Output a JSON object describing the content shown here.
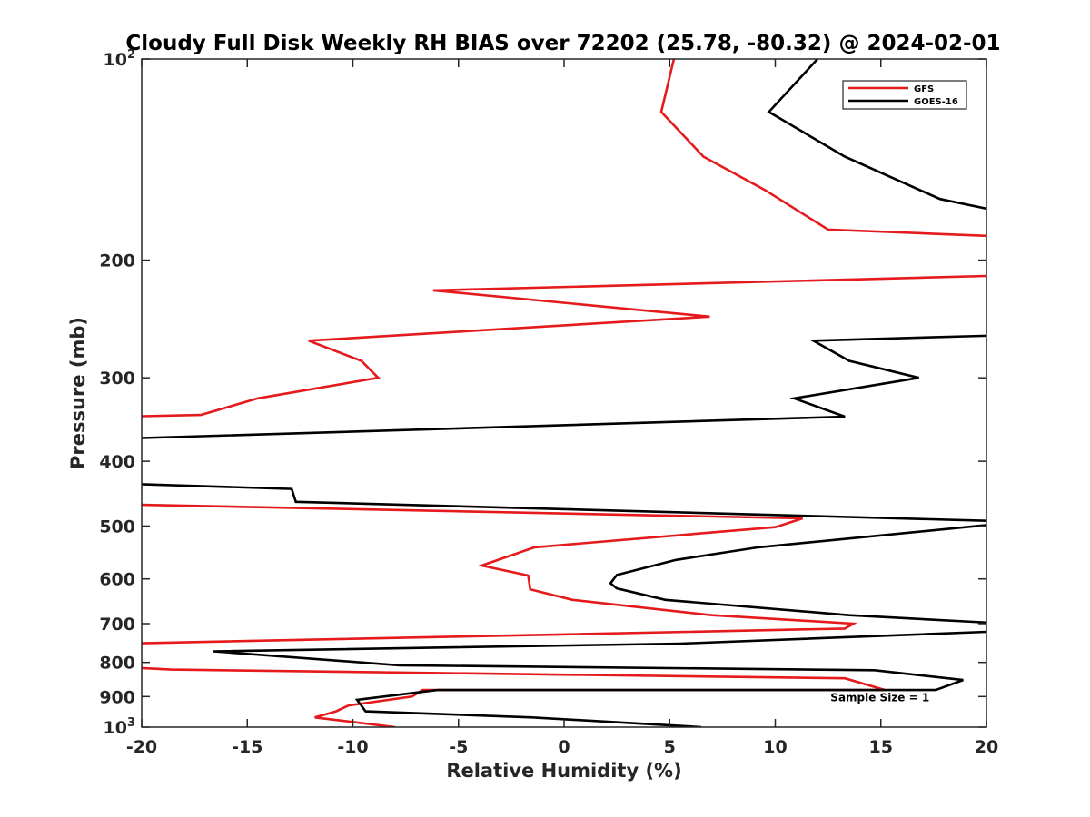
{
  "chart_data": {
    "type": "line",
    "title": "Cloudy Full Disk Weekly RH BIAS over 72202 (25.78, -80.32) @ 2024-02-01",
    "xlabel": "Relative Humidity (%)",
    "ylabel": "Pressure (mb)",
    "xlim": [
      -20,
      20
    ],
    "ylim": [
      100,
      1000
    ],
    "y_scale": "log",
    "y_reversed": true,
    "grid": false,
    "legend_position": "top-right",
    "x_ticks": [
      {
        "value": -20,
        "label": "-20"
      },
      {
        "value": -15,
        "label": "-15"
      },
      {
        "value": -10,
        "label": "-10"
      },
      {
        "value": -5,
        "label": "-5"
      },
      {
        "value": 0,
        "label": "0"
      },
      {
        "value": 5,
        "label": "5"
      },
      {
        "value": 10,
        "label": "10"
      },
      {
        "value": 15,
        "label": "15"
      },
      {
        "value": 20,
        "label": "20"
      }
    ],
    "y_ticks": [
      {
        "value": 100,
        "base": "10",
        "exp": "2"
      },
      {
        "value": 200,
        "base": "200",
        "exp": ""
      },
      {
        "value": 300,
        "base": "300",
        "exp": ""
      },
      {
        "value": 400,
        "base": "400",
        "exp": ""
      },
      {
        "value": 500,
        "base": "500",
        "exp": ""
      },
      {
        "value": 600,
        "base": "600",
        "exp": ""
      },
      {
        "value": 700,
        "base": "700",
        "exp": ""
      },
      {
        "value": 800,
        "base": "800",
        "exp": ""
      },
      {
        "value": 900,
        "base": "900",
        "exp": ""
      },
      {
        "value": 1000,
        "base": "10",
        "exp": "3"
      }
    ],
    "series": [
      {
        "name": "GFS",
        "color": "#e41a1c",
        "points": [
          [
            5.2,
            100
          ],
          [
            4.6,
            120
          ],
          [
            6.6,
            140
          ],
          [
            9.5,
            157
          ],
          [
            12.5,
            180
          ],
          [
            22,
            185
          ],
          [
            20.5,
            211
          ],
          [
            -6.2,
            222
          ],
          [
            6.9,
            243
          ],
          [
            -12.1,
            264
          ],
          [
            -9.6,
            283
          ],
          [
            -8.8,
            300
          ],
          [
            -14.5,
            322
          ],
          [
            -17.2,
            341
          ],
          [
            -21,
            343
          ],
          [
            -21,
            464
          ],
          [
            11.3,
            487
          ],
          [
            10,
            502
          ],
          [
            -1.4,
            538
          ],
          [
            -3.9,
            573
          ],
          [
            -1.7,
            593
          ],
          [
            -1.6,
            622
          ],
          [
            0.4,
            645
          ],
          [
            7.0,
            680
          ],
          [
            13.7,
            700
          ],
          [
            13.3,
            712
          ],
          [
            -21,
            750
          ],
          [
            -21,
            813
          ],
          [
            -18.6,
            820
          ],
          [
            13.3,
            845
          ],
          [
            15.2,
            880
          ],
          [
            -6.7,
            880
          ],
          [
            -7.2,
            900
          ],
          [
            -10.2,
            928
          ],
          [
            -10.8,
            947
          ],
          [
            -11.8,
            967
          ],
          [
            -8.0,
            1000
          ]
        ]
      },
      {
        "name": "GOES-16",
        "color": "#000000",
        "points": [
          [
            12.0,
            100
          ],
          [
            9.7,
            120
          ],
          [
            13.3,
            140
          ],
          [
            17.8,
            162
          ],
          [
            21,
            170
          ],
          [
            21,
            259
          ],
          [
            11.8,
            264
          ],
          [
            13.5,
            283
          ],
          [
            16.8,
            300
          ],
          [
            10.9,
            322
          ],
          [
            13.3,
            343
          ],
          [
            -21,
            370
          ],
          [
            -21,
            432
          ],
          [
            -12.9,
            440
          ],
          [
            -12.7,
            460
          ],
          [
            21,
            492
          ],
          [
            21,
            495
          ],
          [
            9.2,
            538
          ],
          [
            5.3,
            562
          ],
          [
            2.5,
            592
          ],
          [
            2.2,
            609
          ],
          [
            2.5,
            620
          ],
          [
            4.8,
            645
          ],
          [
            13.5,
            680
          ],
          [
            21,
            700
          ],
          [
            21,
            718
          ],
          [
            5.5,
            750
          ],
          [
            -16.6,
            770
          ],
          [
            -7.8,
            808
          ],
          [
            14.7,
            822
          ],
          [
            18.9,
            850
          ],
          [
            17.6,
            880
          ],
          [
            -6.0,
            880
          ],
          [
            -9.8,
            910
          ],
          [
            -9.4,
            947
          ],
          [
            -1.5,
            967
          ],
          [
            6.5,
            1000
          ]
        ]
      }
    ],
    "annotations": [
      {
        "text": "Sample Size = 1",
        "x": 15,
        "y": 900
      }
    ]
  }
}
